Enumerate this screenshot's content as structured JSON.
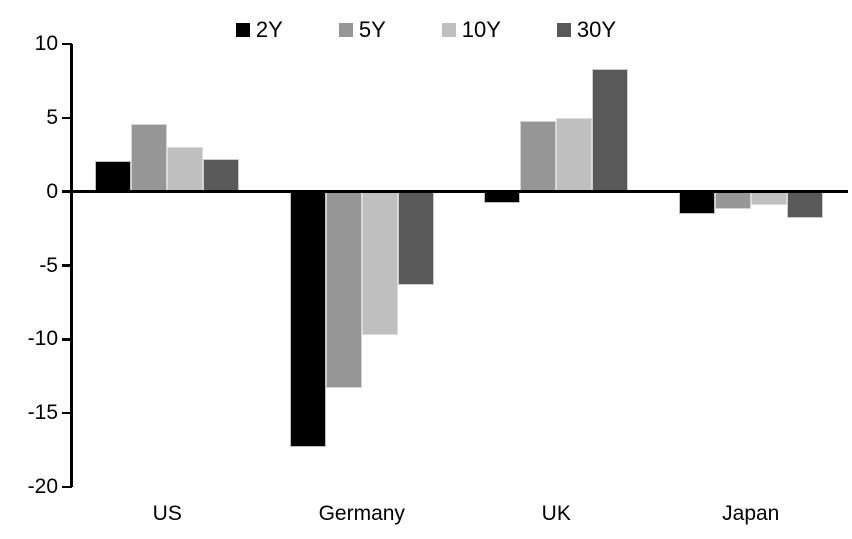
{
  "chart_data": {
    "type": "bar",
    "title": "",
    "xlabel": "",
    "ylabel": "",
    "categories": [
      "US",
      "Germany",
      "UK",
      "Japan"
    ],
    "series": [
      {
        "name": "2Y",
        "color": "#000000",
        "values": [
          2.1,
          -17.3,
          -0.8,
          -1.5
        ]
      },
      {
        "name": "5Y",
        "color": "#969696",
        "values": [
          4.6,
          -13.3,
          4.8,
          -1.2
        ]
      },
      {
        "name": "10Y",
        "color": "#bfbfbf",
        "values": [
          3.0,
          -9.7,
          5.0,
          -0.9
        ]
      },
      {
        "name": "30Y",
        "color": "#595959",
        "values": [
          2.2,
          -6.3,
          8.3,
          -1.8
        ]
      }
    ],
    "ylim": [
      -20,
      10
    ],
    "yticks": [
      10,
      5,
      0,
      -5,
      -10,
      -15,
      -20
    ],
    "grid": false,
    "legend_position": "top-center",
    "axis_color": "#000000",
    "background_color": "#ffffff"
  }
}
